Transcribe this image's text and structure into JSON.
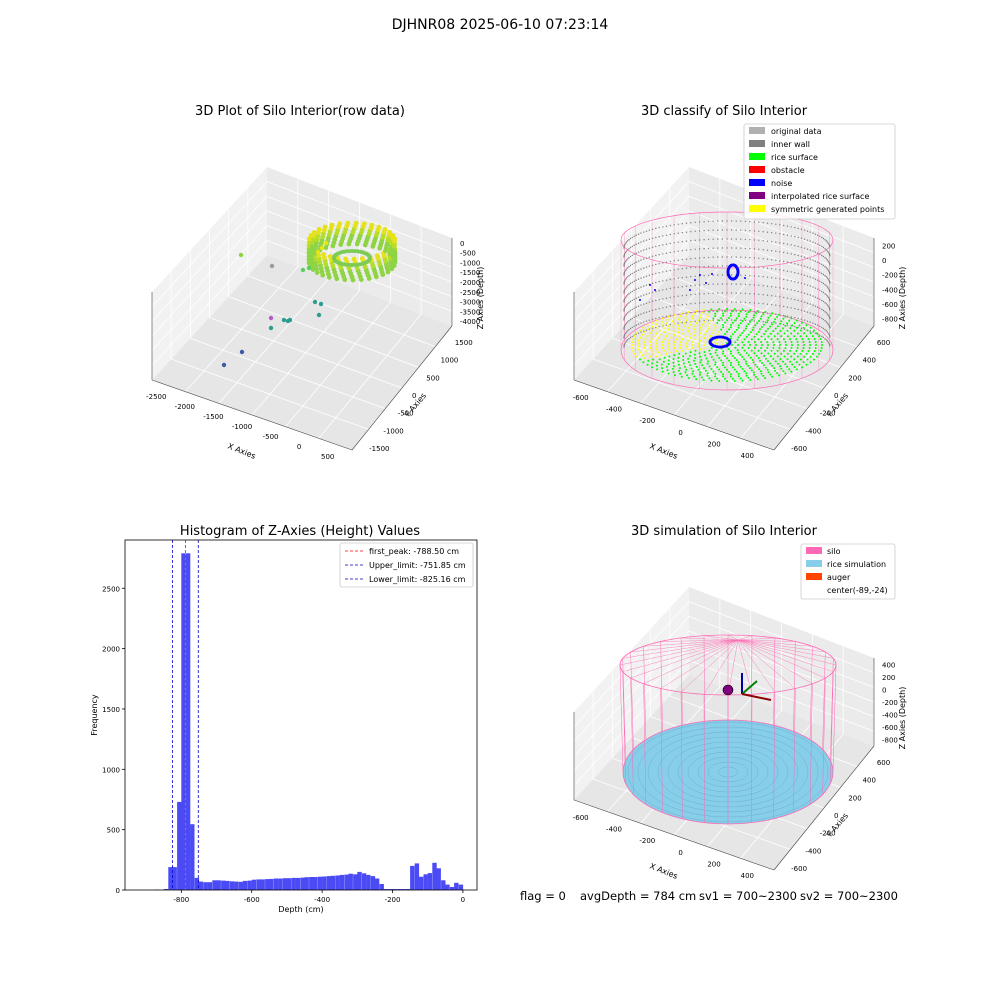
{
  "suptitle": "DJHNR08 2025-06-10 07:23:14",
  "status": {
    "flag": "flag = 0",
    "avg_depth": "avgDepth = 784 cm",
    "sv1": "sv1 = 700~2300",
    "sv2": "sv2 = 700~2300"
  },
  "colors": {
    "raw_ring": "#a6dc2a",
    "original_data": "#b0b0b0",
    "inner_wall": "#808080",
    "rice_surface": "#00ff00",
    "obstacle": "#ff0000",
    "noise": "#0000ff",
    "interpolated_rice_surface": "#800080",
    "symmetric_generated_points": "#ffff00",
    "silo": "#ff69b4",
    "rice_simulation": "#87ceeb",
    "auger": "#ff4500",
    "histogram_bar": "#4b4bf5",
    "first_peak_line": "#ff0000",
    "limit_line": "#0000cc"
  },
  "chart_data": [
    {
      "type": "scatter",
      "projection": "3d",
      "title": "3D Plot of Silo Interior(row data)",
      "xlabel": "X Axies",
      "ylabel": "Y Axies",
      "zlabel": "Z Axies (Depth)",
      "xticks": [
        "-2500",
        "-2000",
        "-1500",
        "-1000",
        "-500",
        "0",
        "500"
      ],
      "yticks": [
        "1500",
        "1000",
        "500",
        "0",
        "-500",
        "-1000",
        "-1500"
      ],
      "zticks": [
        "0",
        "-500",
        "-1000",
        "-1500",
        "-2000",
        "-2500",
        "-3000",
        "-3500",
        "-4000"
      ]
    },
    {
      "type": "scatter",
      "projection": "3d",
      "title": "3D classify of Silo Interior",
      "xlabel": "X Axies",
      "ylabel": "Y Axies",
      "zlabel": "Z Axies (Depth)",
      "xticks": [
        "-600",
        "-400",
        "-200",
        "0",
        "200",
        "400"
      ],
      "yticks": [
        "600",
        "400",
        "200",
        "0",
        "-200",
        "-400",
        "-600"
      ],
      "zticks": [
        "200",
        "0",
        "-200",
        "-400",
        "-600",
        "-800"
      ],
      "legend_position": "top-right",
      "legend": [
        {
          "label": "original data",
          "color": "#b0b0b0"
        },
        {
          "label": "inner wall",
          "color": "#808080"
        },
        {
          "label": "rice surface",
          "color": "#00ff00"
        },
        {
          "label": "obstacle",
          "color": "#ff0000"
        },
        {
          "label": "noise",
          "color": "#0000ff"
        },
        {
          "label": "interpolated rice surface",
          "color": "#800080"
        },
        {
          "label": "symmetric generated points",
          "color": "#ffff00"
        }
      ]
    },
    {
      "type": "bar",
      "title": "Histogram of Z-Axies (Height) Values",
      "xlabel": "Depth (cm)",
      "ylabel": "Frequency",
      "xlim": [
        -960,
        40
      ],
      "ylim": [
        0,
        2900
      ],
      "xticks": [
        -800,
        -600,
        -400,
        -200,
        0
      ],
      "yticks": [
        0,
        500,
        1000,
        1500,
        2000,
        2500
      ],
      "bin_width": 12.5,
      "bins": [
        [
          -875,
          3
        ],
        [
          -850,
          8
        ],
        [
          -837,
          190
        ],
        [
          -825,
          190
        ],
        [
          -812,
          730
        ],
        [
          -800,
          2790
        ],
        [
          -787,
          2790
        ],
        [
          -775,
          545
        ],
        [
          -762,
          100
        ],
        [
          -750,
          70
        ],
        [
          -737,
          65
        ],
        [
          -725,
          65
        ],
        [
          -712,
          80
        ],
        [
          -700,
          80
        ],
        [
          -687,
          78
        ],
        [
          -675,
          75
        ],
        [
          -662,
          72
        ],
        [
          -650,
          70
        ],
        [
          -637,
          68
        ],
        [
          -625,
          75
        ],
        [
          -612,
          78
        ],
        [
          -600,
          85
        ],
        [
          -587,
          88
        ],
        [
          -575,
          88
        ],
        [
          -562,
          90
        ],
        [
          -550,
          92
        ],
        [
          -537,
          95
        ],
        [
          -525,
          95
        ],
        [
          -512,
          98
        ],
        [
          -500,
          98
        ],
        [
          -487,
          100
        ],
        [
          -475,
          100
        ],
        [
          -462,
          103
        ],
        [
          -450,
          106
        ],
        [
          -437,
          108
        ],
        [
          -425,
          108
        ],
        [
          -412,
          110
        ],
        [
          -400,
          112
        ],
        [
          -387,
          115
        ],
        [
          -375,
          118
        ],
        [
          -362,
          120
        ],
        [
          -350,
          125
        ],
        [
          -337,
          128
        ],
        [
          -325,
          135
        ],
        [
          -312,
          130
        ],
        [
          -300,
          150
        ],
        [
          -287,
          138
        ],
        [
          -275,
          125
        ],
        [
          -262,
          115
        ],
        [
          -250,
          95
        ],
        [
          -237,
          50
        ],
        [
          -225,
          8
        ],
        [
          -212,
          8
        ],
        [
          -200,
          8
        ],
        [
          -187,
          8
        ],
        [
          -175,
          8
        ],
        [
          -162,
          8
        ],
        [
          -150,
          200
        ],
        [
          -137,
          220
        ],
        [
          -125,
          110
        ],
        [
          -112,
          130
        ],
        [
          -100,
          140
        ],
        [
          -87,
          225
        ],
        [
          -75,
          180
        ],
        [
          -62,
          80
        ],
        [
          -50,
          45
        ],
        [
          -37,
          25
        ],
        [
          -25,
          60
        ],
        [
          -12,
          45
        ]
      ],
      "vlines": [
        {
          "label": "first_peak: -788.50 cm",
          "x": -788.5,
          "color": "#ff0000"
        },
        {
          "label": "Upper_limit: -751.85 cm",
          "x": -751.85,
          "color": "#0000cc"
        },
        {
          "label": "Lower_limit: -825.16 cm",
          "x": -825.16,
          "color": "#0000cc"
        }
      ],
      "legend_position": "top-right"
    },
    {
      "type": "scatter",
      "projection": "3d",
      "title": "3D simulation of Silo Interior",
      "xlabel": "X Axies",
      "ylabel": "Y Axies",
      "zlabel": "Z Axies (Depth)",
      "xticks": [
        "-600",
        "-400",
        "-200",
        "0",
        "200",
        "400"
      ],
      "yticks": [
        "600",
        "400",
        "200",
        "0",
        "-200",
        "-400",
        "-600"
      ],
      "zticks": [
        "400",
        "200",
        "0",
        "-200",
        "-400",
        "-600",
        "-800"
      ],
      "legend_position": "top-right",
      "legend": [
        {
          "label": "silo",
          "color": "#ff69b4"
        },
        {
          "label": "rice simulation",
          "color": "#87ceeb"
        },
        {
          "label": "auger",
          "color": "#ff4500"
        },
        {
          "label": "center(-89,-24)",
          "color": ""
        }
      ]
    }
  ]
}
